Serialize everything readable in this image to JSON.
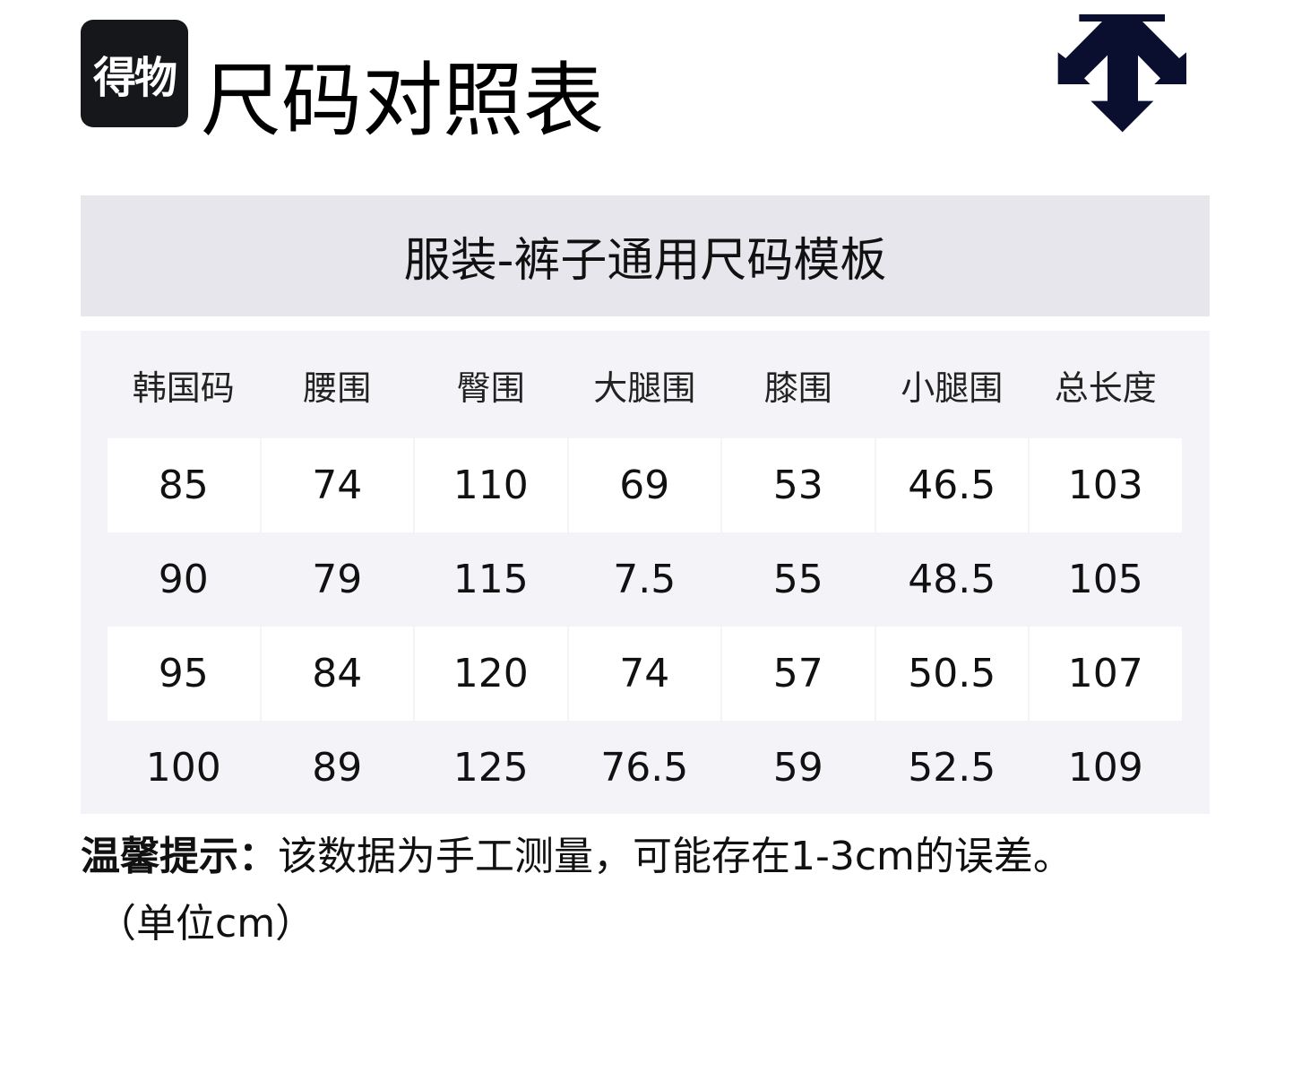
{
  "header": {
    "badge": "得物",
    "title": "尺码对照表",
    "brand_logo": "descente-arrow-logo",
    "logo_color": "#0a0f30"
  },
  "band": {
    "title": "服装-裤子通用尺码模板"
  },
  "table": {
    "columns": [
      "韩国码",
      "腰围",
      "臀围",
      "大腿围",
      "膝围",
      "小腿围",
      "总长度"
    ],
    "rows": [
      [
        "85",
        "74",
        "110",
        "69",
        "53",
        "46.5",
        "103"
      ],
      [
        "90",
        "79",
        "115",
        "7.5",
        "55",
        "48.5",
        "105"
      ],
      [
        "95",
        "84",
        "120",
        "74",
        "57",
        "50.5",
        "107"
      ],
      [
        "100",
        "89",
        "125",
        "76.5",
        "59",
        "52.5",
        "109"
      ]
    ]
  },
  "note": {
    "label": "温馨提示：",
    "text": "该数据为手工测量，可能存在1-3cm的误差。",
    "unit": "（单位cm）"
  }
}
